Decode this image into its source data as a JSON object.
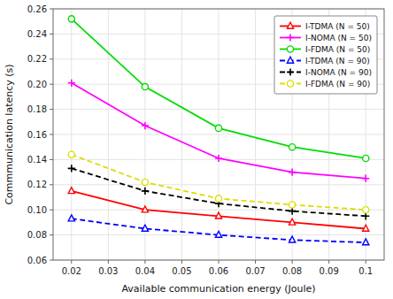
{
  "chart_data": {
    "type": "line",
    "x": [
      0.02,
      0.04,
      0.06,
      0.08,
      0.1
    ],
    "series": [
      {
        "name": "I-TDMA (N = 50)",
        "color": "#ff0000",
        "marker": "triangle",
        "line_style": "solid",
        "values": [
          0.115,
          0.1,
          0.095,
          0.09,
          0.085
        ]
      },
      {
        "name": "I-NOMA (N = 50)",
        "color": "#ff00ff",
        "marker": "plus",
        "line_style": "solid",
        "values": [
          0.201,
          0.167,
          0.141,
          0.13,
          0.125
        ]
      },
      {
        "name": "I-FDMA (N = 50)",
        "color": "#00dd00",
        "marker": "circle",
        "line_style": "solid",
        "values": [
          0.252,
          0.198,
          0.165,
          0.15,
          0.141
        ]
      },
      {
        "name": "I-TDMA (N = 90)",
        "color": "#0000ff",
        "marker": "triangle",
        "line_style": "dashed",
        "values": [
          0.093,
          0.085,
          0.08,
          0.076,
          0.074
        ]
      },
      {
        "name": "I-NOMA (N = 90)",
        "color": "#000000",
        "marker": "plus",
        "line_style": "dashed",
        "values": [
          0.133,
          0.115,
          0.105,
          0.099,
          0.095
        ]
      },
      {
        "name": "I-FDMA (N = 90)",
        "color": "#dddd00",
        "marker": "circle",
        "line_style": "dashed",
        "values": [
          0.144,
          0.122,
          0.109,
          0.104,
          0.1
        ]
      }
    ],
    "xlabel": "Available communication energy (Joule)",
    "ylabel": "Commmunication latency (s)",
    "xlim": [
      0.015,
      0.105
    ],
    "ylim": [
      0.06,
      0.26
    ],
    "xticks": [
      0.02,
      0.03,
      0.04,
      0.05,
      0.06,
      0.07,
      0.08,
      0.09,
      0.1
    ],
    "yticks": [
      0.06,
      0.08,
      {
        "value": 0.1,
        "label": "0.10"
      },
      0.12,
      0.14,
      0.16,
      0.18,
      {
        "value": 0.2,
        "label": "0.20"
      },
      0.22,
      0.24,
      0.26
    ],
    "grid": true,
    "legend": "upper right"
  }
}
